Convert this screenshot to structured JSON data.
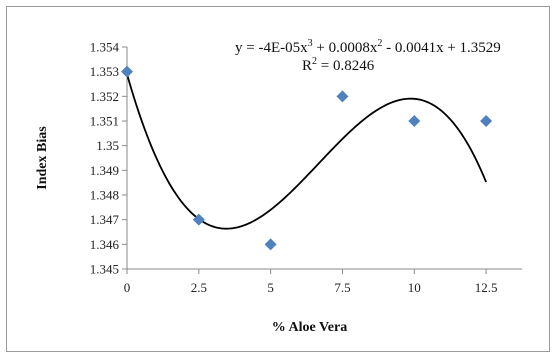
{
  "chart_data": {
    "type": "scatter",
    "xlabel": "% Aloe Vera",
    "ylabel": "Index Bias",
    "x": [
      0,
      2.5,
      5,
      7.5,
      10,
      12.5
    ],
    "y": [
      1.353,
      1.347,
      1.346,
      1.352,
      1.351,
      1.351
    ],
    "xlim": [
      0,
      13.75
    ],
    "ylim": [
      1.345,
      1.354
    ],
    "x_ticks": [
      "0",
      "2.5",
      "5",
      "7.5",
      "10",
      "12.5"
    ],
    "y_ticks": [
      "1.345",
      "1.346",
      "1.347",
      "1.348",
      "1.349",
      "1.35",
      "1.351",
      "1.352",
      "1.353",
      "1.354"
    ],
    "marker_color": "#4f81bd",
    "trendline": {
      "type": "polynomial",
      "order": 3,
      "coefficients": [
        -4e-05,
        0.0008,
        -0.0041,
        1.3529
      ],
      "x_range": [
        0,
        12.5
      ],
      "color": "#000000"
    },
    "grid": false,
    "legend": "none"
  }
}
